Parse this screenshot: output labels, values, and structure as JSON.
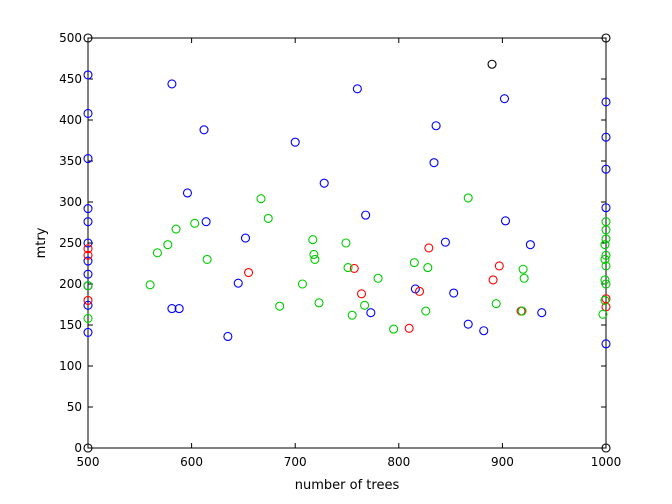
{
  "chart_data": {
    "type": "scatter",
    "xlabel": "number of trees",
    "ylabel": "mtry",
    "xlim": [
      500,
      1000
    ],
    "ylim": [
      0,
      500
    ],
    "x_ticks": [
      500,
      600,
      700,
      800,
      900,
      1000
    ],
    "y_ticks": [
      0,
      50,
      100,
      150,
      200,
      250,
      300,
      350,
      400,
      450,
      500
    ],
    "grid": false,
    "marker": "circle-open",
    "series": [
      {
        "color": "#000000",
        "points": [
          [
            500,
            500
          ],
          [
            500,
            0
          ],
          [
            890,
            468
          ],
          [
            1000,
            500
          ],
          [
            1000,
            0
          ]
        ]
      },
      {
        "color": "#0000ff",
        "points": [
          [
            500,
            455
          ],
          [
            500,
            408
          ],
          [
            500,
            353
          ],
          [
            500,
            292
          ],
          [
            500,
            276
          ],
          [
            500,
            250
          ],
          [
            500,
            228
          ],
          [
            500,
            212
          ],
          [
            500,
            198
          ],
          [
            500,
            174
          ],
          [
            500,
            141
          ],
          [
            581,
            444
          ],
          [
            581,
            170
          ],
          [
            588,
            170
          ],
          [
            596,
            311
          ],
          [
            612,
            388
          ],
          [
            614,
            276
          ],
          [
            635,
            136
          ],
          [
            645,
            201
          ],
          [
            652,
            256
          ],
          [
            700,
            373
          ],
          [
            728,
            323
          ],
          [
            760,
            438
          ],
          [
            768,
            284
          ],
          [
            773,
            165
          ],
          [
            816,
            194
          ],
          [
            834,
            348
          ],
          [
            836,
            393
          ],
          [
            845,
            251
          ],
          [
            853,
            189
          ],
          [
            867,
            151
          ],
          [
            882,
            143
          ],
          [
            902,
            426
          ],
          [
            903,
            277
          ],
          [
            927,
            248
          ],
          [
            938,
            165
          ],
          [
            1000,
            422
          ],
          [
            1000,
            379
          ],
          [
            1000,
            340
          ],
          [
            1000,
            293
          ],
          [
            1000,
            127
          ]
        ]
      },
      {
        "color": "#ff0000",
        "points": [
          [
            500,
            243
          ],
          [
            500,
            235
          ],
          [
            500,
            180
          ],
          [
            655,
            214
          ],
          [
            757,
            219
          ],
          [
            764,
            188
          ],
          [
            810,
            146
          ],
          [
            820,
            191
          ],
          [
            829,
            244
          ],
          [
            891,
            205
          ],
          [
            897,
            222
          ],
          [
            918,
            167
          ],
          [
            1000,
            182
          ],
          [
            1000,
            172
          ]
        ]
      },
      {
        "color": "#00cc00",
        "points": [
          [
            500,
            198
          ],
          [
            500,
            158
          ],
          [
            560,
            199
          ],
          [
            567,
            238
          ],
          [
            577,
            248
          ],
          [
            585,
            267
          ],
          [
            603,
            274
          ],
          [
            615,
            230
          ],
          [
            667,
            304
          ],
          [
            674,
            280
          ],
          [
            685,
            173
          ],
          [
            707,
            200
          ],
          [
            717,
            254
          ],
          [
            718,
            236
          ],
          [
            719,
            230
          ],
          [
            723,
            177
          ],
          [
            749,
            250
          ],
          [
            751,
            220
          ],
          [
            755,
            162
          ],
          [
            767,
            174
          ],
          [
            780,
            207
          ],
          [
            795,
            145
          ],
          [
            815,
            226
          ],
          [
            826,
            167
          ],
          [
            828,
            220
          ],
          [
            867,
            305
          ],
          [
            894,
            176
          ],
          [
            919,
            167
          ],
          [
            920,
            218
          ],
          [
            921,
            207
          ],
          [
            997,
            163
          ],
          [
            999,
            180
          ],
          [
            999,
            205
          ],
          [
            999,
            230
          ],
          [
            999,
            248
          ],
          [
            1000,
            266
          ],
          [
            1000,
            276
          ],
          [
            1000,
            255
          ],
          [
            1000,
            235
          ],
          [
            1000,
            222
          ],
          [
            1000,
            200
          ]
        ]
      }
    ]
  }
}
